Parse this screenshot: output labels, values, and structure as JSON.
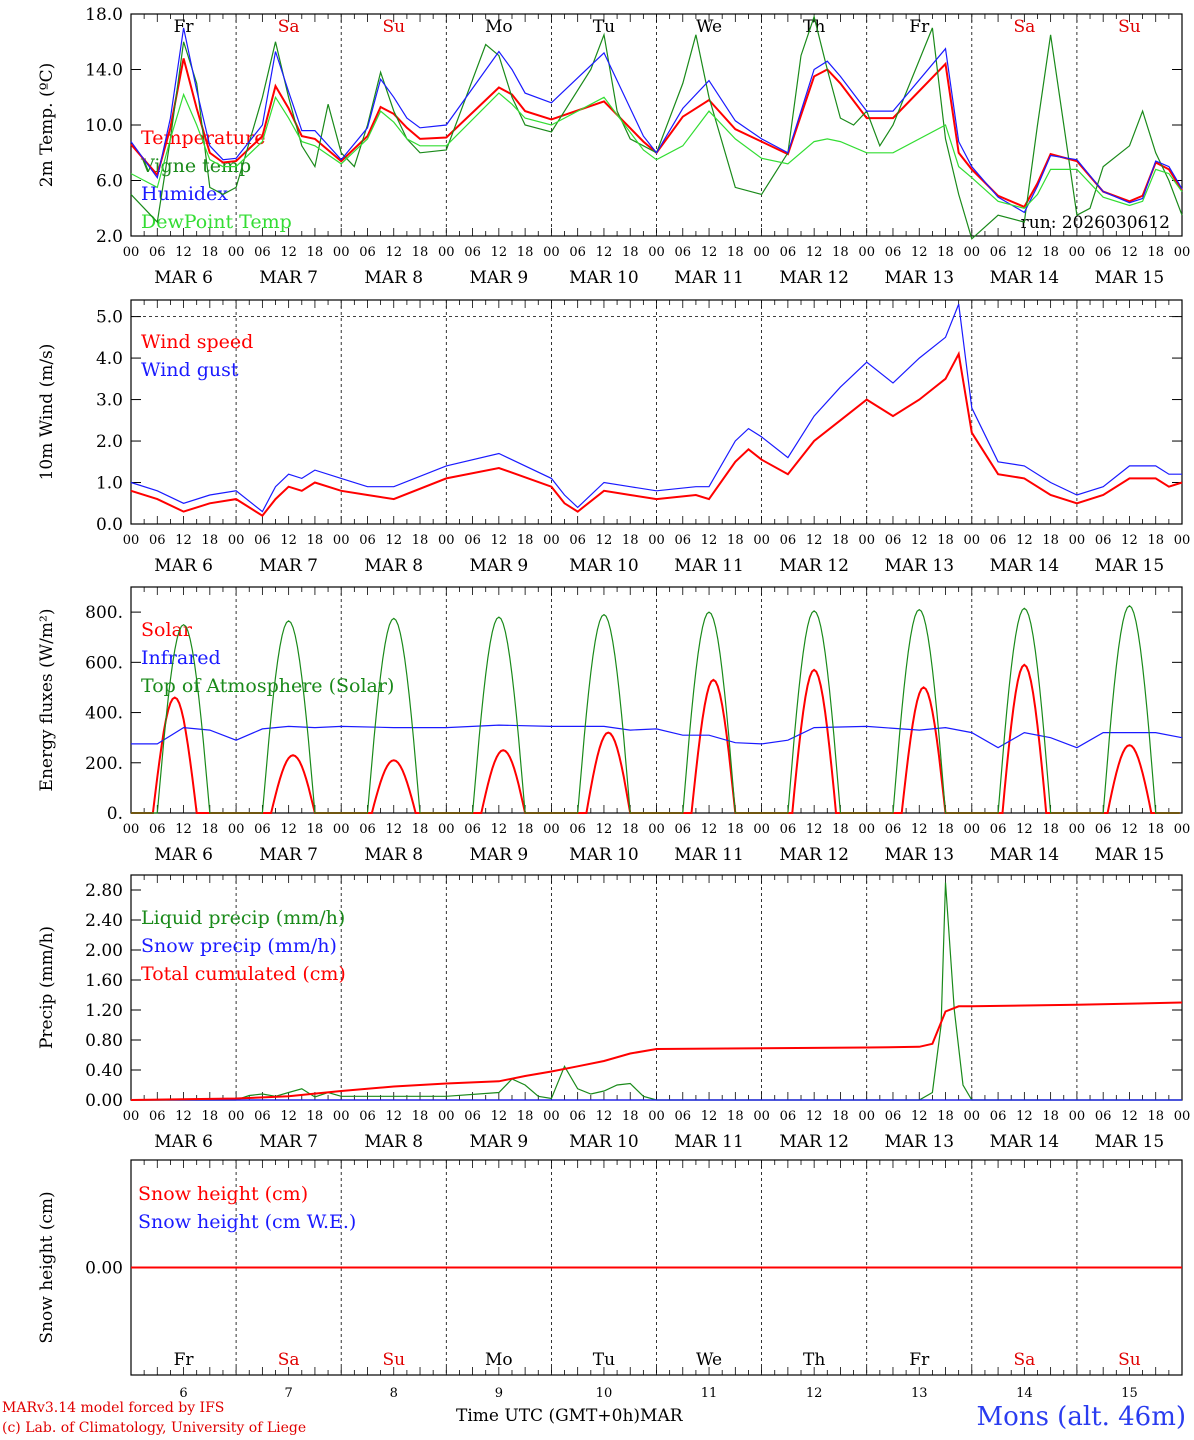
{
  "chart_data": [
    {
      "type": "line",
      "ylabel": "2m Temp. (ºC)",
      "ylim": [
        2.0,
        18.0
      ],
      "yticks": [
        "18.0",
        "14.0",
        "10.0",
        "6.0",
        "2.0"
      ],
      "run_label": "run: 2026030612",
      "x_unit": "hours from 00 UTC MAR 6",
      "series": [
        {
          "name": "Temperature",
          "color": "#ff0000",
          "x": [
            0,
            6,
            9,
            12,
            15,
            18,
            21,
            24,
            30,
            33,
            36,
            39,
            42,
            48,
            54,
            57,
            60,
            63,
            66,
            72,
            84,
            87,
            90,
            96,
            108,
            117,
            120,
            126,
            132,
            138,
            144,
            150,
            156,
            159,
            162,
            168,
            174,
            186,
            189,
            192,
            198,
            204,
            207,
            210,
            216,
            222,
            228,
            231,
            234,
            237,
            240
          ],
          "y": [
            8.6,
            6.4,
            9.8,
            14.8,
            11.2,
            8.0,
            7.3,
            7.4,
            9.2,
            12.8,
            11.2,
            9.2,
            9.0,
            7.4,
            9.2,
            11.3,
            10.8,
            9.8,
            9.0,
            9.1,
            12.7,
            12.2,
            11.0,
            10.4,
            11.7,
            8.8,
            8.0,
            10.6,
            11.8,
            9.7,
            8.8,
            7.9,
            13.5,
            14.0,
            13.0,
            10.5,
            10.5,
            14.4,
            8.0,
            6.8,
            4.9,
            4.1,
            5.8,
            7.9,
            7.4,
            5.2,
            4.5,
            4.9,
            7.3,
            6.8,
            5.3
          ]
        },
        {
          "name": "Vigne temp",
          "color": "#1a8a1a",
          "x": [
            0,
            6,
            9,
            12,
            15,
            18,
            21,
            24,
            30,
            33,
            36,
            39,
            42,
            45,
            48,
            51,
            54,
            57,
            60,
            63,
            66,
            72,
            81,
            84,
            87,
            90,
            96,
            105,
            108,
            111,
            114,
            117,
            120,
            126,
            129,
            132,
            138,
            144,
            150,
            153,
            156,
            159,
            162,
            165,
            168,
            171,
            174,
            183,
            186,
            189,
            192,
            198,
            204,
            207,
            210,
            213,
            216,
            219,
            222,
            228,
            231,
            234,
            237,
            240
          ],
          "y": [
            5.0,
            3.0,
            9.0,
            16.0,
            13.0,
            5.5,
            5.0,
            5.5,
            12.0,
            16.0,
            12.0,
            8.5,
            7.0,
            11.5,
            8.0,
            7.0,
            10.0,
            13.8,
            11.0,
            9.0,
            8.0,
            8.2,
            15.8,
            15.0,
            12.0,
            10.0,
            9.5,
            14.0,
            16.5,
            11.0,
            9.0,
            8.5,
            8.0,
            13.0,
            16.5,
            12.0,
            5.5,
            5.0,
            8.0,
            15.0,
            17.8,
            14.0,
            10.5,
            10.0,
            11.0,
            8.5,
            10.0,
            17.0,
            9.0,
            5.0,
            1.8,
            3.5,
            3.0,
            10.0,
            16.5,
            10.0,
            3.5,
            4.0,
            7.0,
            8.5,
            11.0,
            8.0,
            6.0,
            3.5
          ]
        },
        {
          "name": "Humidex",
          "color": "#1a1aff",
          "x": [
            0,
            6,
            9,
            12,
            15,
            18,
            21,
            24,
            30,
            33,
            36,
            39,
            42,
            48,
            54,
            57,
            60,
            63,
            66,
            72,
            84,
            87,
            90,
            96,
            108,
            117,
            120,
            126,
            132,
            138,
            144,
            150,
            156,
            159,
            162,
            168,
            174,
            186,
            189,
            192,
            198,
            204,
            207,
            210,
            216,
            222,
            228,
            231,
            234,
            237,
            240
          ],
          "y": [
            8.8,
            6.2,
            10.5,
            17.0,
            12.5,
            8.5,
            7.5,
            7.6,
            10.0,
            15.3,
            12.4,
            9.6,
            9.6,
            7.5,
            9.8,
            13.3,
            12.0,
            10.5,
            9.8,
            10.0,
            15.3,
            14.0,
            12.3,
            11.6,
            15.2,
            9.2,
            8.0,
            11.2,
            13.2,
            10.3,
            9.0,
            8.0,
            14.0,
            14.6,
            13.5,
            11.0,
            11.0,
            15.5,
            8.8,
            7.0,
            4.8,
            3.7,
            5.6,
            7.8,
            7.5,
            5.2,
            4.4,
            4.7,
            7.4,
            7.0,
            5.4
          ]
        },
        {
          "name": "DewPoint Temp",
          "color": "#33dd33",
          "x": [
            0,
            6,
            9,
            12,
            15,
            18,
            21,
            24,
            30,
            33,
            36,
            39,
            42,
            48,
            54,
            57,
            60,
            63,
            66,
            72,
            84,
            87,
            90,
            96,
            108,
            117,
            120,
            126,
            132,
            138,
            144,
            150,
            156,
            159,
            162,
            168,
            174,
            186,
            189,
            192,
            198,
            204,
            207,
            210,
            216,
            222,
            228,
            231,
            234,
            237,
            240
          ],
          "y": [
            6.5,
            5.5,
            9.0,
            12.2,
            10.0,
            7.5,
            7.0,
            7.0,
            8.8,
            12.0,
            10.5,
            8.8,
            8.5,
            7.2,
            9.0,
            11.0,
            10.2,
            9.0,
            8.5,
            8.5,
            12.3,
            11.5,
            10.5,
            10.0,
            12.0,
            8.2,
            7.5,
            8.5,
            11.0,
            9.0,
            7.6,
            7.2,
            8.8,
            9.0,
            8.8,
            8.0,
            8.0,
            10.0,
            7.0,
            6.2,
            4.5,
            4.0,
            5.0,
            6.8,
            6.8,
            4.8,
            4.2,
            4.5,
            6.8,
            6.5,
            5.2
          ]
        }
      ]
    },
    {
      "type": "line",
      "ylabel": "10m Wind (m/s)",
      "ylim": [
        0.0,
        5.4
      ],
      "yticks": [
        "5.0",
        "4.0",
        "3.0",
        "2.0",
        "1.0",
        "0.0"
      ],
      "series": [
        {
          "name": "Wind speed",
          "color": "#ff0000",
          "x": [
            0,
            6,
            12,
            18,
            24,
            30,
            33,
            36,
            39,
            42,
            48,
            54,
            60,
            72,
            84,
            96,
            99,
            102,
            108,
            114,
            120,
            129,
            132,
            138,
            141,
            144,
            150,
            156,
            162,
            168,
            174,
            180,
            186,
            189,
            192,
            198,
            204,
            210,
            216,
            222,
            228,
            234,
            237,
            240
          ],
          "y": [
            0.8,
            0.6,
            0.3,
            0.5,
            0.6,
            0.2,
            0.6,
            0.9,
            0.8,
            1.0,
            0.8,
            0.7,
            0.6,
            1.1,
            1.35,
            0.9,
            0.5,
            0.3,
            0.8,
            0.7,
            0.6,
            0.7,
            0.6,
            1.5,
            1.8,
            1.55,
            1.2,
            2.0,
            2.5,
            3.0,
            2.6,
            3.0,
            3.5,
            4.1,
            2.2,
            1.2,
            1.1,
            0.7,
            0.5,
            0.7,
            1.1,
            1.1,
            0.9,
            1.0
          ]
        },
        {
          "name": "Wind gust",
          "color": "#1a1aff",
          "x": [
            0,
            6,
            12,
            18,
            24,
            30,
            33,
            36,
            39,
            42,
            48,
            54,
            60,
            72,
            84,
            96,
            99,
            102,
            108,
            114,
            120,
            129,
            132,
            138,
            141,
            144,
            150,
            156,
            162,
            168,
            174,
            180,
            186,
            189,
            192,
            198,
            204,
            210,
            216,
            222,
            228,
            234,
            237,
            240
          ],
          "y": [
            1.0,
            0.8,
            0.5,
            0.7,
            0.8,
            0.3,
            0.9,
            1.2,
            1.1,
            1.3,
            1.1,
            0.9,
            0.9,
            1.4,
            1.7,
            1.1,
            0.7,
            0.4,
            1.0,
            0.9,
            0.8,
            0.9,
            0.9,
            2.0,
            2.3,
            2.1,
            1.6,
            2.6,
            3.3,
            3.9,
            3.4,
            4.0,
            4.5,
            5.3,
            2.8,
            1.5,
            1.4,
            1.0,
            0.7,
            0.9,
            1.4,
            1.4,
            1.2,
            1.2
          ]
        }
      ]
    },
    {
      "type": "line",
      "ylabel": "Energy fluxes (W/m²)",
      "ylim": [
        0,
        900
      ],
      "yticks": [
        "800.",
        "600.",
        "400.",
        "200.",
        "0."
      ],
      "series": [
        {
          "name": "Solar",
          "color": "#ff0000",
          "peaks": [
            460,
            230,
            210,
            250,
            320,
            530,
            570,
            500,
            590,
            270
          ],
          "peak_hour": [
            10,
            13,
            12,
            13,
            13,
            13,
            12,
            13,
            12,
            12
          ]
        },
        {
          "name": "Infrared",
          "color": "#1a1aff",
          "x": [
            0,
            6,
            12,
            18,
            24,
            30,
            36,
            42,
            48,
            60,
            72,
            84,
            96,
            108,
            114,
            120,
            126,
            132,
            138,
            144,
            150,
            156,
            168,
            180,
            186,
            192,
            198,
            204,
            210,
            216,
            222,
            228,
            234,
            240
          ],
          "y": [
            275,
            275,
            340,
            330,
            290,
            335,
            345,
            340,
            345,
            340,
            340,
            350,
            345,
            345,
            330,
            335,
            310,
            310,
            280,
            275,
            290,
            340,
            345,
            330,
            340,
            320,
            260,
            320,
            300,
            260,
            320,
            320,
            320,
            300
          ]
        },
        {
          "name": "Top of Atmosphere (Solar)",
          "color": "#1a8a1a",
          "peaks": [
            750,
            765,
            775,
            780,
            790,
            800,
            805,
            810,
            815,
            825
          ],
          "peak_hour": [
            12,
            12,
            12,
            12,
            12,
            12,
            12,
            12,
            12,
            12
          ]
        }
      ]
    },
    {
      "type": "line",
      "ylabel": "Precip (mm/h)",
      "ylim": [
        0.0,
        3.0
      ],
      "yticks": [
        "2.80",
        "2.40",
        "2.00",
        "1.60",
        "1.20",
        "0.80",
        "0.40",
        "0.00"
      ],
      "series": [
        {
          "name": "Liquid precip (mm/h)",
          "color": "#1a8a1a",
          "x": [
            0,
            24,
            27,
            30,
            33,
            36,
            39,
            42,
            45,
            48,
            60,
            72,
            84,
            87,
            90,
            93,
            96,
            99,
            102,
            105,
            108,
            111,
            114,
            117,
            120,
            180,
            183,
            185,
            186,
            188,
            190,
            192,
            240
          ],
          "y": [
            0,
            0,
            0.06,
            0.08,
            0.05,
            0.1,
            0.15,
            0.04,
            0.1,
            0.05,
            0.05,
            0.05,
            0.1,
            0.28,
            0.2,
            0.05,
            0.02,
            0.45,
            0.15,
            0.08,
            0.12,
            0.2,
            0.22,
            0.05,
            0.0,
            0.0,
            0.1,
            1.0,
            2.9,
            1.2,
            0.2,
            0.0,
            0.0
          ]
        },
        {
          "name": "Snow precip (mm/h)",
          "color": "#1a1aff",
          "x": [
            0,
            240
          ],
          "y": [
            0,
            0
          ]
        },
        {
          "name": "Total cumulated (cm)",
          "color": "#ff0000",
          "x": [
            0,
            24,
            36,
            48,
            60,
            72,
            84,
            90,
            96,
            102,
            108,
            114,
            120,
            144,
            168,
            180,
            183,
            186,
            189,
            192,
            216,
            240
          ],
          "y": [
            0,
            0.02,
            0.05,
            0.12,
            0.18,
            0.22,
            0.25,
            0.32,
            0.38,
            0.45,
            0.52,
            0.62,
            0.68,
            0.69,
            0.7,
            0.71,
            0.75,
            1.18,
            1.25,
            1.25,
            1.27,
            1.3
          ]
        }
      ]
    },
    {
      "type": "line",
      "ylabel": "Snow height (cm)",
      "ylim": [
        -1,
        1
      ],
      "yticks": [
        "0.00"
      ],
      "series": [
        {
          "name": "Snow height (cm)",
          "color": "#ff0000",
          "x": [
            0,
            240
          ],
          "y": [
            0,
            0
          ]
        },
        {
          "name": "Snow height (cm W.E.)",
          "color": "#1a1aff",
          "x": [],
          "y": []
        }
      ]
    }
  ],
  "axis": {
    "hour_ticks": [
      "00",
      "06",
      "12",
      "18"
    ],
    "end_tick": "00",
    "dates": [
      "MAR 6",
      "MAR 7",
      "MAR 8",
      "MAR 9",
      "MAR 10",
      "MAR 11",
      "MAR 12",
      "MAR 13",
      "MAR 14",
      "MAR 15"
    ],
    "weekdays": [
      "Fr",
      "Sa",
      "Su",
      "Mo",
      "Tu",
      "We",
      "Th",
      "Fr",
      "Sa",
      "Su"
    ],
    "weekend_flags": [
      false,
      true,
      true,
      false,
      false,
      false,
      false,
      false,
      true,
      true
    ],
    "day_numbers": [
      "6",
      "7",
      "8",
      "9",
      "10",
      "11",
      "12",
      "13",
      "14",
      "15"
    ],
    "xlabel": "Time UTC (GMT+0h)",
    "xlabel_suffix": "MAR"
  },
  "footer": {
    "model": "MARv3.14 model forced by IFS",
    "credit": "(c) Lab. of Climatology, University of Liege",
    "station": "Mons (alt. 46m)"
  },
  "colors": {
    "red": "#ff0000",
    "green": "#1a8a1a",
    "blue": "#1a1aff",
    "lightgreen": "#33dd33",
    "weekend": "#e00000"
  }
}
